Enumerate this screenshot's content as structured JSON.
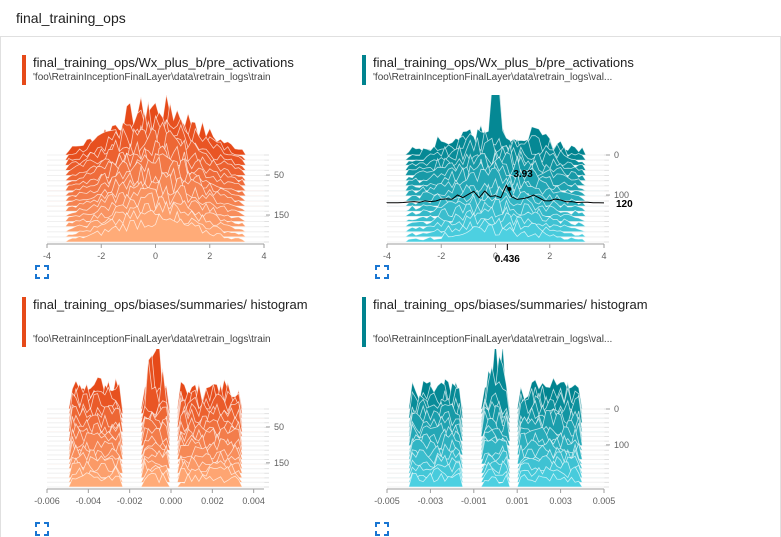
{
  "header": {
    "title": "final_training_ops"
  },
  "chart_data": [
    {
      "type": "area",
      "title": "final_training_ops/Wx_plus_b/pre_activations",
      "subtitle": "'foo\\RetrainInceptionFinalLayer\\data\\retrain_logs\\train",
      "color": "#e64a19",
      "color_light": "#ffab78",
      "mode": "offset",
      "xlim": [
        -4,
        4
      ],
      "x_ticks": [
        -4,
        -2,
        0,
        2,
        4
      ],
      "x_tick_labels": [
        "-4",
        "-2",
        "0",
        "2",
        "4"
      ],
      "y_ticks": [
        50,
        150
      ],
      "y_tick_labels": [
        "50",
        "150"
      ],
      "step_range": [
        0,
        200
      ],
      "shape": "bell",
      "annotations": {}
    },
    {
      "type": "area",
      "title": "final_training_ops/Wx_plus_b/pre_activations",
      "subtitle": "'foo\\RetrainInceptionFinalLayer\\data\\retrain_logs\\val...",
      "color": "#00838f",
      "color_light": "#4dd0e1",
      "mode": "offset",
      "xlim": [
        -4,
        4
      ],
      "x_ticks": [
        -4,
        -2,
        0,
        2,
        4
      ],
      "x_tick_labels": [
        "-4",
        "-2",
        "0",
        "2",
        "4"
      ],
      "y_ticks": [
        0,
        100
      ],
      "y_tick_labels": [
        "0",
        "100"
      ],
      "step_range": [
        0,
        200
      ],
      "shape": "spiky",
      "annotations": {
        "hover_step": "120",
        "hover_x": "0.436",
        "hover_value": "3.93"
      }
    },
    {
      "type": "area",
      "title": "final_training_ops/biases/summaries/ histogram",
      "subtitle": "'foo\\RetrainInceptionFinalLayer\\data\\retrain_logs\\train",
      "color": "#e64a19",
      "color_light": "#ffab78",
      "mode": "offset",
      "xlim": [
        -0.006,
        0.0045
      ],
      "x_ticks": [
        -0.006,
        -0.004,
        -0.002,
        0.0,
        0.002,
        0.004
      ],
      "x_tick_labels": [
        "-0.006",
        "-0.004",
        "-0.002",
        "0.000",
        "0.002",
        "0.004"
      ],
      "y_ticks": [
        50,
        150
      ],
      "y_tick_labels": [
        "50",
        "150"
      ],
      "step_range": [
        0,
        200
      ],
      "shape": "split",
      "annotations": {}
    },
    {
      "type": "area",
      "title": "final_training_ops/biases/summaries/ histogram",
      "subtitle": "'foo\\RetrainInceptionFinalLayer\\data\\retrain_logs\\val...",
      "color": "#00838f",
      "color_light": "#4dd0e1",
      "mode": "offset",
      "xlim": [
        -0.005,
        0.005
      ],
      "x_ticks": [
        -0.005,
        -0.003,
        -0.001,
        0.001,
        0.003,
        0.005
      ],
      "x_tick_labels": [
        "-0.005",
        "-0.003",
        "-0.001",
        "0.001",
        "0.003",
        "0.005"
      ],
      "y_ticks": [
        0,
        100
      ],
      "y_tick_labels": [
        "0",
        "100"
      ],
      "step_range": [
        0,
        200
      ],
      "shape": "split",
      "annotations": {}
    }
  ]
}
